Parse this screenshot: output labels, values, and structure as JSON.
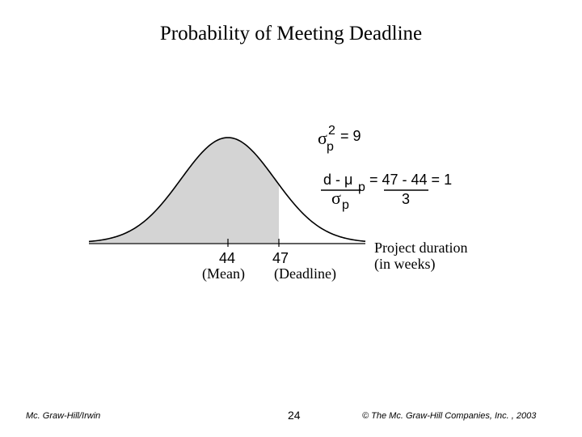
{
  "slide": {
    "title": "Probability of Meeting Deadline"
  },
  "diagram": {
    "mean_value": "44",
    "mean_label": "(Mean)",
    "deadline_value": "47",
    "deadline_label": "(Deadline)",
    "axis_label_line1": "Project duration",
    "axis_label_line2": "(in weeks)",
    "variance": {
      "sigma": "σ",
      "superscript": "2",
      "subscript": "p",
      "rhs": "= 9"
    },
    "z_formula": {
      "numerator_lhs": "d - μ",
      "numerator_sub": "p",
      "denominator_sigma": "σ",
      "denominator_sub": "p",
      "eq_numerator": "= 47 - 44 = 1",
      "eq_denominator": "3"
    },
    "colors": {
      "shaded_area": "#d4d4d4",
      "curve": "#000000",
      "background": "#ffffff"
    }
  },
  "footer": {
    "left": "Mc. Graw-Hill/Irwin",
    "center": "24",
    "right": "© The Mc. Graw-Hill Companies, Inc. , 2003"
  }
}
